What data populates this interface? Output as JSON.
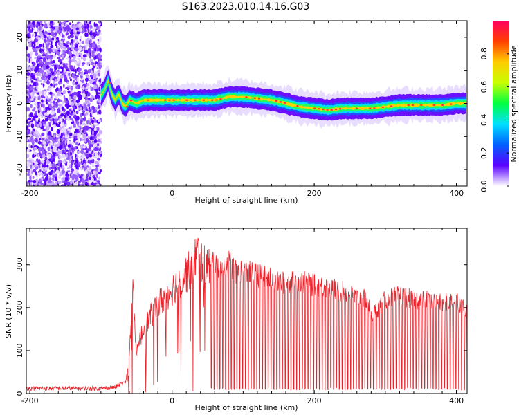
{
  "title": "S163.2023.010.14.16.G03",
  "chart_data": [
    {
      "type": "heatmap",
      "xlabel": "Height of straight line (km)",
      "ylabel": "Frequency (Hz)",
      "xlim": [
        -205,
        415
      ],
      "ylim": [
        -25,
        25
      ],
      "x_ticks": [
        -200,
        0,
        200,
        400
      ],
      "y_ticks": [
        -20,
        -10,
        0,
        10,
        20
      ],
      "colorbar": {
        "label": "Normalized spectral amplitude",
        "range": [
          0,
          1
        ],
        "ticks": [
          0.0,
          0.2,
          0.4,
          0.6,
          0.8
        ],
        "colors": [
          "#ffffff",
          "#5a00ff",
          "#0060ff",
          "#00e0ff",
          "#00ff40",
          "#c8ff00",
          "#ffcc00",
          "#ff4000",
          "#ff0060"
        ]
      },
      "noise_region": {
        "x": [
          -205,
          -100
        ],
        "description_free": true
      },
      "ridge": {
        "x": [
          -100,
          -95,
          -90,
          -85,
          -80,
          -75,
          -70,
          -65,
          -60,
          -50,
          -40,
          -30,
          -20,
          -10,
          0,
          20,
          40,
          60,
          80,
          100,
          120,
          140,
          160,
          180,
          200,
          220,
          240,
          260,
          280,
          300,
          320,
          340,
          360,
          380,
          400,
          415
        ],
        "freq": [
          2.5,
          4,
          7,
          3,
          1,
          3,
          0,
          -1,
          1,
          0,
          1,
          1,
          1,
          1,
          1,
          1,
          1,
          1,
          2,
          2,
          1.5,
          1,
          0,
          -1,
          -1.5,
          -2,
          -1.5,
          -1.5,
          -1.5,
          -1,
          -0.5,
          -0.5,
          -0.5,
          -0.5,
          0,
          0
        ]
      }
    },
    {
      "type": "line",
      "xlabel": "Height of straight line (km)",
      "ylabel": "SNR (10 * v/v)",
      "xlim": [
        -205,
        415
      ],
      "ylim": [
        0,
        385
      ],
      "x_ticks": [
        -200,
        0,
        200,
        400
      ],
      "y_ticks": [
        0,
        100,
        200,
        300
      ],
      "series": [
        {
          "color": "#e8242c",
          "x": [
            -205,
            -150,
            -100,
            -80,
            -65,
            -60,
            -55,
            -50,
            -45,
            -40,
            -30,
            -20,
            -10,
            0,
            10,
            20,
            30,
            35,
            40,
            50,
            60,
            70,
            80,
            90,
            100,
            120,
            140,
            160,
            180,
            200,
            220,
            240,
            260,
            275,
            280,
            300,
            320,
            340,
            360,
            380,
            400,
            415
          ],
          "envelope": [
            12,
            12,
            12,
            15,
            30,
            110,
            270,
            100,
            140,
            170,
            200,
            230,
            250,
            270,
            290,
            310,
            330,
            370,
            340,
            330,
            320,
            310,
            320,
            300,
            300,
            290,
            280,
            270,
            275,
            265,
            260,
            250,
            235,
            230,
            190,
            230,
            240,
            230,
            230,
            220,
            230,
            200
          ],
          "sawtooth_from": 55
        }
      ]
    }
  ]
}
